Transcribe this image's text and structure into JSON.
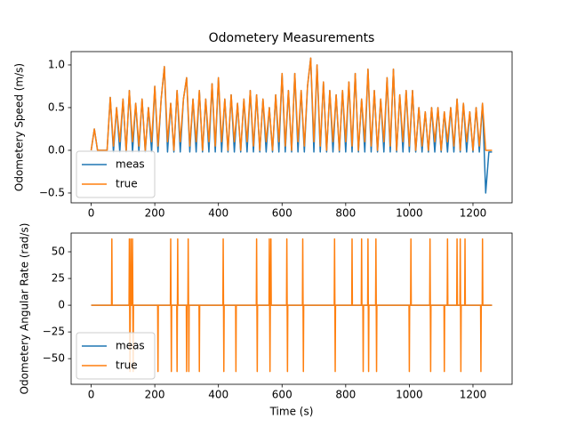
{
  "chart_data": [
    {
      "type": "line",
      "title": "Odometery Measurements",
      "y_label": "Odometery Speed (m/s)",
      "x": [
        0,
        10,
        20,
        30,
        40,
        50,
        60,
        70,
        80,
        90,
        100,
        110,
        120,
        130,
        140,
        150,
        160,
        170,
        180,
        190,
        200,
        210,
        220,
        230,
        240,
        250,
        260,
        270,
        280,
        290,
        300,
        310,
        320,
        330,
        340,
        350,
        360,
        370,
        380,
        390,
        400,
        410,
        420,
        430,
        440,
        450,
        460,
        470,
        480,
        490,
        500,
        510,
        520,
        530,
        540,
        550,
        560,
        570,
        580,
        590,
        600,
        610,
        620,
        630,
        640,
        650,
        660,
        670,
        680,
        690,
        700,
        710,
        720,
        730,
        740,
        750,
        760,
        770,
        780,
        790,
        800,
        810,
        820,
        830,
        840,
        850,
        860,
        870,
        880,
        890,
        900,
        910,
        920,
        930,
        940,
        950,
        960,
        970,
        980,
        990,
        1000,
        1010,
        1020,
        1030,
        1040,
        1050,
        1060,
        1070,
        1080,
        1090,
        1100,
        1110,
        1120,
        1130,
        1140,
        1150,
        1160,
        1170,
        1180,
        1190,
        1200,
        1210,
        1220,
        1230,
        1240,
        1250,
        1260
      ],
      "series": [
        {
          "name": "meas",
          "color": "#1f77b4",
          "values": [
            0,
            0.25,
            0,
            0,
            0,
            0,
            0.62,
            -0.02,
            0.5,
            -0.02,
            0.6,
            -0.02,
            0.7,
            -0.02,
            0.55,
            -0.02,
            0.6,
            -0.02,
            0.5,
            -0.02,
            0.75,
            -0.02,
            0.6,
            0.98,
            -0.02,
            0.55,
            -0.02,
            0.7,
            -0.02,
            0.6,
            0.85,
            -0.02,
            0.6,
            -0.02,
            0.7,
            -0.02,
            0.6,
            -0.02,
            0.78,
            -0.02,
            0.85,
            -0.02,
            0.6,
            -0.02,
            0.65,
            -0.02,
            0.55,
            -0.02,
            0.6,
            -0.02,
            0.7,
            -0.02,
            0.65,
            -0.02,
            0.6,
            -0.02,
            0.5,
            -0.02,
            0.65,
            -0.02,
            0.9,
            -0.02,
            0.7,
            -0.02,
            0.9,
            -0.02,
            0.7,
            -0.02,
            0.75,
            1.08,
            -0.02,
            1.0,
            -0.02,
            0.8,
            -0.02,
            0.7,
            -0.02,
            0.65,
            -0.02,
            0.7,
            -0.02,
            0.8,
            -0.02,
            0.9,
            -0.02,
            0.6,
            -0.02,
            0.95,
            -0.02,
            0.7,
            -0.02,
            0.6,
            -0.02,
            0.85,
            -0.02,
            0.95,
            -0.02,
            0.65,
            -0.02,
            0.7,
            -0.02,
            0.7,
            -0.02,
            0.5,
            -0.02,
            0.45,
            -0.02,
            0.5,
            -0.02,
            0.5,
            -0.02,
            0.45,
            -0.02,
            0.5,
            -0.02,
            0.6,
            -0.02,
            0.55,
            -0.02,
            0.45,
            -0.02,
            0.5,
            -0.02,
            0.55,
            -0.5,
            -0.02,
            -0.02
          ]
        },
        {
          "name": "true",
          "color": "#ff7f0e",
          "values": [
            0,
            0.25,
            0,
            0,
            0,
            0,
            0.62,
            0.05,
            0.5,
            0.1,
            0.6,
            0,
            0.7,
            0.1,
            0.55,
            0.05,
            0.6,
            0,
            0.5,
            0.1,
            0.75,
            0.05,
            0.6,
            0.98,
            0.1,
            0.55,
            0,
            0.7,
            0.1,
            0.6,
            0.85,
            0.05,
            0.6,
            0.1,
            0.7,
            0,
            0.6,
            0.1,
            0.78,
            0.05,
            0.85,
            0.1,
            0.6,
            0,
            0.65,
            0.1,
            0.55,
            0,
            0.6,
            0.1,
            0.7,
            0.05,
            0.65,
            0,
            0.6,
            0.1,
            0.5,
            0,
            0.65,
            0.1,
            0.9,
            0.05,
            0.7,
            0,
            0.9,
            0.1,
            0.7,
            0.05,
            0.75,
            1.08,
            0.1,
            1.0,
            0.05,
            0.8,
            0,
            0.7,
            0.1,
            0.65,
            0,
            0.7,
            0.1,
            0.8,
            0.05,
            0.9,
            0,
            0.6,
            0.1,
            0.95,
            0.05,
            0.7,
            0,
            0.6,
            0.1,
            0.85,
            0.05,
            0.95,
            0,
            0.65,
            0.1,
            0.7,
            0.05,
            0.7,
            0,
            0.5,
            0.05,
            0.45,
            0,
            0.5,
            0.1,
            0.5,
            0,
            0.45,
            0.1,
            0.5,
            0.05,
            0.6,
            0,
            0.55,
            0.1,
            0.45,
            0,
            0.5,
            0.05,
            0.55,
            0,
            0,
            0
          ]
        }
      ],
      "xlim": [
        -63,
        1323
      ],
      "xticks": [
        0,
        200,
        400,
        600,
        800,
        1000,
        1200
      ],
      "ylim": [
        -0.615,
        1.156
      ],
      "yticks": [
        {
          "value": -0.5,
          "label": "−0.5"
        },
        {
          "value": 0,
          "label": "0.0"
        },
        0.5,
        {
          "value": 1,
          "label": "1.0"
        }
      ],
      "legend": "lower left"
    },
    {
      "type": "line",
      "x_label": "Time (s)",
      "y_label": "Odometery Angular Rate (rad/s)",
      "series": [
        {
          "name": "meas",
          "color": "#1f77b4",
          "x": [
            0,
            1260
          ],
          "values": [
            0,
            0
          ]
        },
        {
          "name": "true",
          "color": "#ff7f0e",
          "x": [
            0,
            64,
            65,
            66,
            119,
            120,
            121,
            122,
            123,
            124,
            125,
            126,
            129,
            130,
            131,
            132,
            133,
            209,
            210,
            211,
            249,
            250,
            251,
            252,
            253,
            269,
            270,
            271,
            272,
            273,
            299,
            300,
            301,
            304,
            305,
            306,
            307,
            308,
            339,
            340,
            341,
            414,
            415,
            416,
            417,
            418,
            454,
            455,
            456,
            519,
            520,
            521,
            522,
            523,
            559,
            560,
            561,
            562,
            563,
            564,
            565,
            566,
            614,
            615,
            616,
            617,
            618,
            664,
            665,
            666,
            667,
            668,
            764,
            765,
            766,
            767,
            768,
            819,
            820,
            821,
            849,
            850,
            851,
            854,
            855,
            856,
            869,
            870,
            871,
            872,
            873,
            894,
            895,
            896,
            897,
            898,
            999,
            1000,
            1001,
            1004,
            1005,
            1006,
            1064,
            1065,
            1066,
            1067,
            1068,
            1109,
            1110,
            1111,
            1119,
            1120,
            1121,
            1149,
            1150,
            1151,
            1159,
            1160,
            1161,
            1162,
            1163,
            1174,
            1175,
            1176,
            1224,
            1225,
            1226,
            1229,
            1230,
            1231,
            1260
          ],
          "values": [
            0,
            0,
            62,
            0,
            0,
            62,
            0,
            -62,
            0,
            0,
            62,
            0,
            0,
            62,
            0,
            -62,
            0,
            0,
            -62,
            0,
            0,
            62,
            0,
            -62,
            0,
            0,
            -62,
            0,
            62,
            0,
            0,
            -62,
            0,
            0,
            62,
            0,
            -62,
            0,
            0,
            -62,
            0,
            0,
            62,
            0,
            -62,
            0,
            0,
            -62,
            0,
            0,
            62,
            0,
            -62,
            0,
            0,
            62,
            0,
            -62,
            0,
            0,
            62,
            0,
            0,
            62,
            0,
            -62,
            0,
            0,
            62,
            0,
            -62,
            0,
            0,
            62,
            0,
            -62,
            0,
            0,
            62,
            0,
            0,
            62,
            0,
            0,
            -62,
            0,
            0,
            62,
            0,
            -62,
            0,
            0,
            62,
            0,
            -62,
            0,
            0,
            -62,
            0,
            0,
            62,
            0,
            0,
            62,
            0,
            -62,
            0,
            0,
            -62,
            0,
            0,
            62,
            0,
            0,
            62,
            0,
            0,
            62,
            0,
            -62,
            0,
            0,
            62,
            0,
            0,
            -62,
            0,
            0,
            62,
            0,
            0
          ]
        }
      ],
      "xlim": [
        -63,
        1323
      ],
      "xticks": [
        0,
        200,
        400,
        600,
        800,
        1000,
        1200
      ],
      "ylim": [
        -74,
        67.5
      ],
      "yticks": [
        {
          "value": -50,
          "label": "−50"
        },
        {
          "value": -25,
          "label": "−25"
        },
        0,
        25,
        50
      ],
      "legend": "lower left"
    }
  ]
}
